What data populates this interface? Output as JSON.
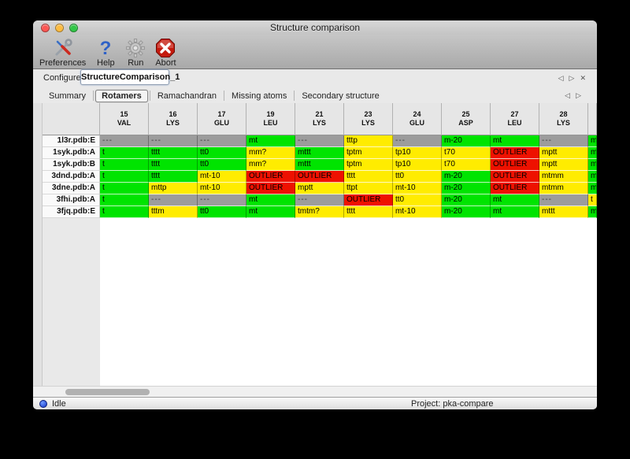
{
  "window": {
    "title": "Structure comparison",
    "traffic_lights": [
      {
        "name": "close-button",
        "color": "#fc5753"
      },
      {
        "name": "minimize-button",
        "color": "#fdbc40"
      },
      {
        "name": "zoom-button",
        "color": "#33c748"
      }
    ]
  },
  "toolbar": {
    "buttons": [
      {
        "label": "Preferences",
        "icon": "tools-icon"
      },
      {
        "label": "Help",
        "icon": "help-icon"
      },
      {
        "label": "Run",
        "icon": "gear-icon"
      },
      {
        "label": "Abort",
        "icon": "abort-icon"
      }
    ]
  },
  "configure": {
    "label": "Configure",
    "value": "StructureComparison_1",
    "nav": {
      "prev": "◁",
      "next": "▷",
      "close": "✕"
    }
  },
  "tabs": {
    "items": [
      "Summary",
      "Rotamers",
      "Ramachandran",
      "Missing atoms",
      "Secondary structure"
    ],
    "active": "Rotamers",
    "nav": {
      "prev": "◁",
      "next": "▷"
    }
  },
  "colors": {
    "favored": "#00e400",
    "allowed": "#ffec00",
    "outlier": "#ee1100",
    "missing": "#9c9c9c"
  },
  "table": {
    "columns": [
      {
        "num": "15",
        "res": "VAL"
      },
      {
        "num": "16",
        "res": "LYS"
      },
      {
        "num": "17",
        "res": "GLU"
      },
      {
        "num": "19",
        "res": "LEU"
      },
      {
        "num": "21",
        "res": "LYS"
      },
      {
        "num": "23",
        "res": "LYS"
      },
      {
        "num": "24",
        "res": "GLU"
      },
      {
        "num": "25",
        "res": "ASP"
      },
      {
        "num": "27",
        "res": "LEU"
      },
      {
        "num": "28",
        "res": "LYS"
      }
    ],
    "rows": [
      {
        "label": "1l3r.pdb:E",
        "cells": [
          [
            "---",
            "missing"
          ],
          [
            "---",
            "missing"
          ],
          [
            "---",
            "missing"
          ],
          [
            "mt",
            "favored"
          ],
          [
            "---",
            "missing"
          ],
          [
            "tttp",
            "allowed"
          ],
          [
            "---",
            "missing"
          ],
          [
            "m-20",
            "favored"
          ],
          [
            "mt",
            "favored"
          ],
          [
            "---",
            "missing"
          ]
        ],
        "partial": [
          "m",
          "favored"
        ]
      },
      {
        "label": "1syk.pdb:A",
        "cells": [
          [
            "t",
            "favored"
          ],
          [
            "tttt",
            "favored"
          ],
          [
            "tt0",
            "favored"
          ],
          [
            "mm?",
            "allowed"
          ],
          [
            "mttt",
            "favored"
          ],
          [
            "tptm",
            "allowed"
          ],
          [
            "tp10",
            "allowed"
          ],
          [
            "t70",
            "allowed"
          ],
          [
            "OUTLIER",
            "outlier"
          ],
          [
            "mptt",
            "allowed"
          ]
        ],
        "partial": [
          "m",
          "favored"
        ]
      },
      {
        "label": "1syk.pdb:B",
        "cells": [
          [
            "t",
            "favored"
          ],
          [
            "tttt",
            "favored"
          ],
          [
            "tt0",
            "favored"
          ],
          [
            "mm?",
            "allowed"
          ],
          [
            "mttt",
            "favored"
          ],
          [
            "tptm",
            "allowed"
          ],
          [
            "tp10",
            "allowed"
          ],
          [
            "t70",
            "allowed"
          ],
          [
            "OUTLIER",
            "outlier"
          ],
          [
            "mptt",
            "allowed"
          ]
        ],
        "partial": [
          "m",
          "favored"
        ]
      },
      {
        "label": "3dnd.pdb:A",
        "cells": [
          [
            "t",
            "favored"
          ],
          [
            "tttt",
            "favored"
          ],
          [
            "mt-10",
            "allowed"
          ],
          [
            "OUTLIER",
            "outlier"
          ],
          [
            "OUTLIER",
            "outlier"
          ],
          [
            "tttt",
            "allowed"
          ],
          [
            "tt0",
            "allowed"
          ],
          [
            "m-20",
            "favored"
          ],
          [
            "OUTLIER",
            "outlier"
          ],
          [
            "mtmm",
            "allowed"
          ]
        ],
        "partial": [
          "m",
          "favored"
        ]
      },
      {
        "label": "3dne.pdb:A",
        "cells": [
          [
            "t",
            "favored"
          ],
          [
            "mttp",
            "allowed"
          ],
          [
            "mt-10",
            "allowed"
          ],
          [
            "OUTLIER",
            "outlier"
          ],
          [
            "mptt",
            "allowed"
          ],
          [
            "ttpt",
            "allowed"
          ],
          [
            "mt-10",
            "allowed"
          ],
          [
            "m-20",
            "favored"
          ],
          [
            "OUTLIER",
            "outlier"
          ],
          [
            "mtmm",
            "allowed"
          ]
        ],
        "partial": [
          "m",
          "favored"
        ]
      },
      {
        "label": "3fhi.pdb:A",
        "cells": [
          [
            "t",
            "favored"
          ],
          [
            "---",
            "missing"
          ],
          [
            "---",
            "missing"
          ],
          [
            "mt",
            "favored"
          ],
          [
            "---",
            "missing"
          ],
          [
            "OUTLIER",
            "outlier"
          ],
          [
            "tt0",
            "allowed"
          ],
          [
            "m-20",
            "favored"
          ],
          [
            "mt",
            "favored"
          ],
          [
            "---",
            "missing"
          ]
        ],
        "partial": [
          "t",
          "allowed"
        ]
      },
      {
        "label": "3fjq.pdb:E",
        "cells": [
          [
            "t",
            "favored"
          ],
          [
            "tttm",
            "allowed"
          ],
          [
            "tt0",
            "favored"
          ],
          [
            "mt",
            "favored"
          ],
          [
            "tmtm?",
            "allowed"
          ],
          [
            "tttt",
            "allowed"
          ],
          [
            "mt-10",
            "allowed"
          ],
          [
            "m-20",
            "favored"
          ],
          [
            "mt",
            "favored"
          ],
          [
            "mttt",
            "allowed"
          ]
        ],
        "partial": [
          "m",
          "favored"
        ]
      }
    ]
  },
  "statusbar": {
    "state": "Idle",
    "project": "Project: pka-compare"
  }
}
